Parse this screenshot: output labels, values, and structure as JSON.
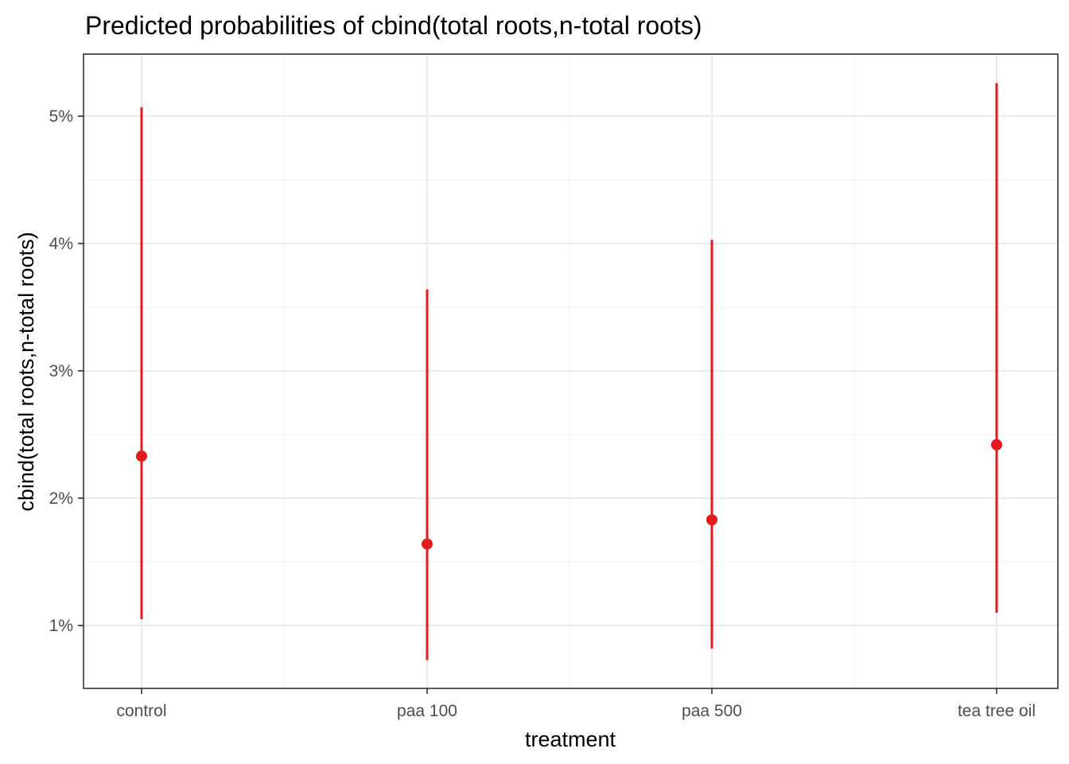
{
  "chart_data": {
    "type": "scatter",
    "title": "Predicted probabilities of cbind(total roots,n-total roots)",
    "xlabel": "treatment",
    "ylabel": "cbind(total roots,n-total roots)",
    "categories": [
      "control",
      "paa 100",
      "paa 500",
      "tea tree oil"
    ],
    "series": [
      {
        "estimate": [
          2.33,
          1.64,
          1.83,
          2.42
        ],
        "ci_low": [
          1.05,
          0.73,
          0.82,
          1.1
        ],
        "ci_high": [
          5.07,
          3.64,
          4.03,
          5.26
        ]
      }
    ],
    "yticks": [
      1,
      2,
      3,
      4,
      5
    ],
    "ytick_labels": [
      "1%",
      "2%",
      "3%",
      "4%",
      "5%"
    ],
    "ylim": [
      0.5,
      5.5
    ],
    "grid": true,
    "colors": {
      "series": "#e41a1c",
      "grid": "#ebebeb",
      "border": "#333333",
      "tick_text": "#4d4d4d"
    }
  }
}
